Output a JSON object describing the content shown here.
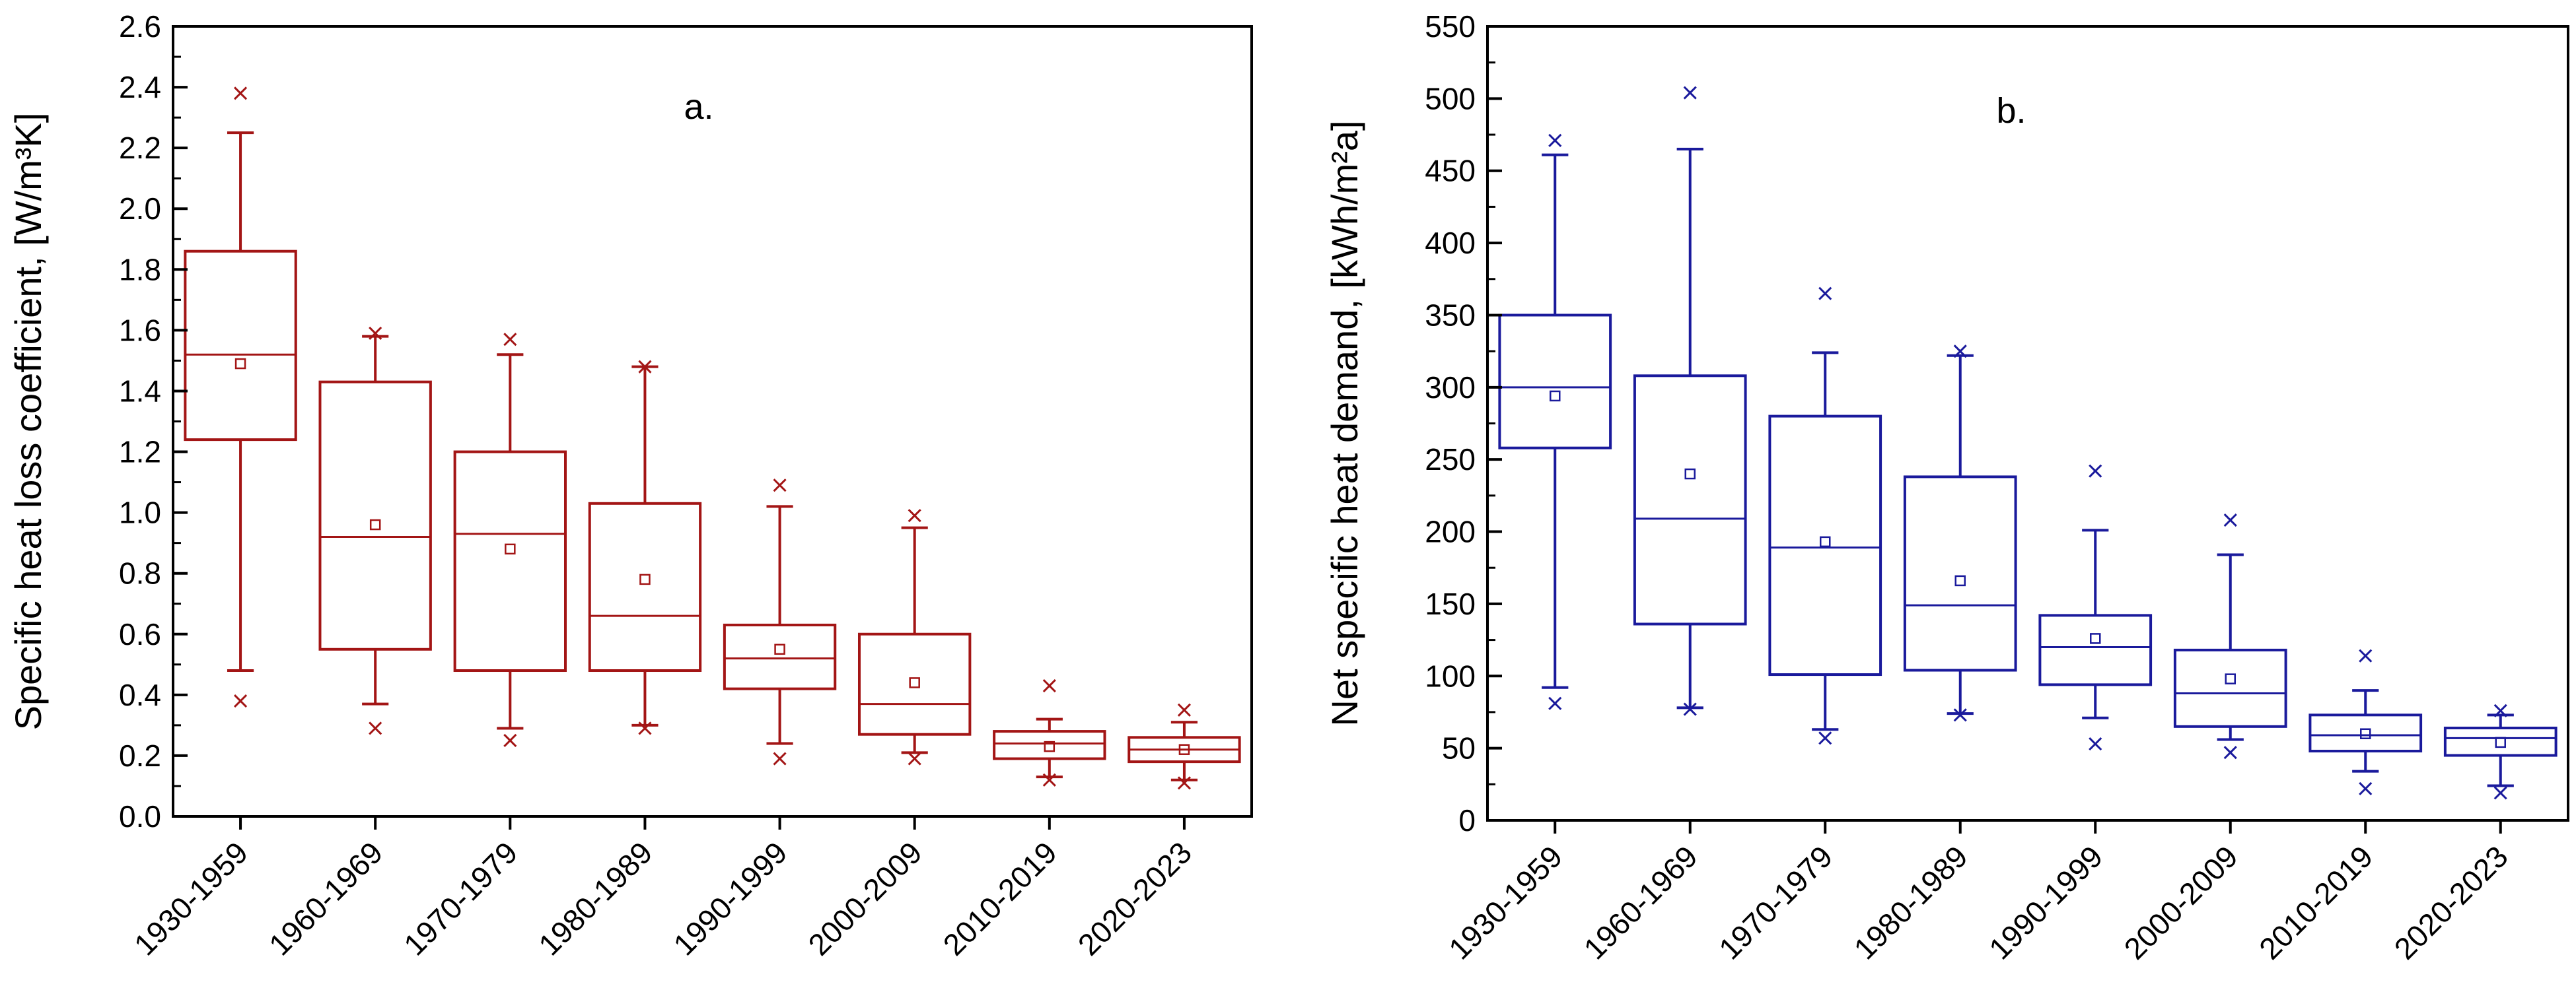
{
  "chart_data": [
    {
      "type": "box",
      "panel_label": "a.",
      "ylabel": "Specific heat loss coefficient, [W/m³K]",
      "ylim": [
        0,
        2.6
      ],
      "yticks": [
        "0.0",
        "0.2",
        "0.4",
        "0.6",
        "0.8",
        "1.0",
        "1.2",
        "1.4",
        "1.6",
        "1.8",
        "2.0",
        "2.2",
        "2.4",
        "2.6"
      ],
      "ytick_step": 0.2,
      "color": "#a31515",
      "categories": [
        "1930-1959",
        "1960-1969",
        "1970-1979",
        "1980-1989",
        "1990-1999",
        "2000-2009",
        "2010-2019",
        "2020-2023"
      ],
      "boxes": [
        {
          "whisker_low": 0.48,
          "q1": 1.24,
          "median": 1.52,
          "q3": 1.86,
          "whisker_high": 2.25,
          "mean": 1.49,
          "min": 0.38,
          "max": 2.38
        },
        {
          "whisker_low": 0.37,
          "q1": 0.55,
          "median": 0.92,
          "q3": 1.43,
          "whisker_high": 1.58,
          "mean": 0.96,
          "min": 0.29,
          "max": 1.59
        },
        {
          "whisker_low": 0.29,
          "q1": 0.48,
          "median": 0.93,
          "q3": 1.2,
          "whisker_high": 1.52,
          "mean": 0.88,
          "min": 0.25,
          "max": 1.57
        },
        {
          "whisker_low": 0.3,
          "q1": 0.48,
          "median": 0.66,
          "q3": 1.03,
          "whisker_high": 1.48,
          "mean": 0.78,
          "min": 0.29,
          "max": 1.48
        },
        {
          "whisker_low": 0.24,
          "q1": 0.42,
          "median": 0.52,
          "q3": 0.63,
          "whisker_high": 1.02,
          "mean": 0.55,
          "min": 0.19,
          "max": 1.09
        },
        {
          "whisker_low": 0.21,
          "q1": 0.27,
          "median": 0.37,
          "q3": 0.6,
          "whisker_high": 0.95,
          "mean": 0.44,
          "min": 0.19,
          "max": 0.99
        },
        {
          "whisker_low": 0.13,
          "q1": 0.19,
          "median": 0.24,
          "q3": 0.28,
          "whisker_high": 0.32,
          "mean": 0.23,
          "min": 0.12,
          "max": 0.43
        },
        {
          "whisker_low": 0.12,
          "q1": 0.18,
          "median": 0.22,
          "q3": 0.26,
          "whisker_high": 0.31,
          "mean": 0.22,
          "min": 0.11,
          "max": 0.35
        }
      ]
    },
    {
      "type": "box",
      "panel_label": "b.",
      "ylabel": "Net specific heat demand, [kWh/m²a]",
      "ylim": [
        0,
        550
      ],
      "yticks": [
        "0",
        "50",
        "100",
        "150",
        "200",
        "250",
        "300",
        "350",
        "400",
        "450",
        "500",
        "550"
      ],
      "ytick_step": 50,
      "color": "#1a1a9c",
      "categories": [
        "1930-1959",
        "1960-1969",
        "1970-1979",
        "1980-1989",
        "1990-1999",
        "2000-2009",
        "2010-2019",
        "2020-2023"
      ],
      "boxes": [
        {
          "whisker_low": 92,
          "q1": 258,
          "median": 300,
          "q3": 350,
          "whisker_high": 461,
          "mean": 294,
          "min": 81,
          "max": 471
        },
        {
          "whisker_low": 78,
          "q1": 136,
          "median": 209,
          "q3": 308,
          "whisker_high": 465,
          "mean": 240,
          "min": 77,
          "max": 504
        },
        {
          "whisker_low": 63,
          "q1": 101,
          "median": 189,
          "q3": 280,
          "whisker_high": 324,
          "mean": 193,
          "min": 57,
          "max": 365
        },
        {
          "whisker_low": 74,
          "q1": 104,
          "median": 149,
          "q3": 238,
          "whisker_high": 322,
          "mean": 166,
          "min": 73,
          "max": 325
        },
        {
          "whisker_low": 71,
          "q1": 94,
          "median": 120,
          "q3": 142,
          "whisker_high": 201,
          "mean": 126,
          "min": 53,
          "max": 242
        },
        {
          "whisker_low": 56,
          "q1": 65,
          "median": 88,
          "q3": 118,
          "whisker_high": 184,
          "mean": 98,
          "min": 47,
          "max": 208
        },
        {
          "whisker_low": 34,
          "q1": 48,
          "median": 59,
          "q3": 73,
          "whisker_high": 90,
          "mean": 60,
          "min": 22,
          "max": 114
        },
        {
          "whisker_low": 24,
          "q1": 45,
          "median": 57,
          "q3": 64,
          "whisker_high": 73,
          "mean": 54,
          "min": 19,
          "max": 76
        }
      ]
    }
  ]
}
